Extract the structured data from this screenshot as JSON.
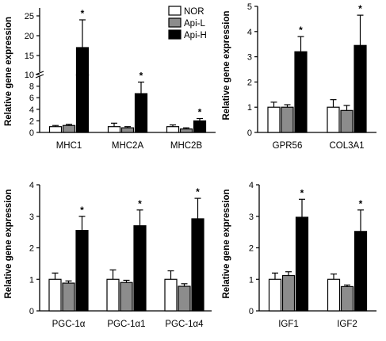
{
  "colors": {
    "NOR": "#ffffff",
    "Api-L": "#8c8c8c",
    "Api-H": "#000000",
    "stroke": "#000000"
  },
  "legend": {
    "position": "top-right of first panel",
    "entries": [
      "NOR",
      "Api-L",
      "Api-H"
    ]
  },
  "chart_data": [
    {
      "type": "bar",
      "axis_break": true,
      "ylabel": "Relative gene expression",
      "categories": [
        "MHC1",
        "MHC2A",
        "MHC2B"
      ],
      "yticks": [
        0,
        2,
        4,
        6,
        8,
        10,
        15,
        20,
        25
      ],
      "ylim_lower": [
        0,
        10
      ],
      "ylim_upper": [
        10,
        27
      ],
      "series": [
        {
          "name": "NOR",
          "values": [
            1.0,
            1.0,
            1.0
          ],
          "errors": [
            0.2,
            0.6,
            0.3
          ]
        },
        {
          "name": "Api-L",
          "values": [
            1.2,
            0.8,
            0.6
          ],
          "errors": [
            0.2,
            0.2,
            0.2
          ]
        },
        {
          "name": "Api-H",
          "values": [
            17.0,
            6.7,
            2.0
          ],
          "errors": [
            7.0,
            2.0,
            0.4
          ]
        }
      ],
      "significance": [
        "*",
        "*",
        "*"
      ]
    },
    {
      "type": "bar",
      "ylabel": "Relative gene expression",
      "categories": [
        "GPR56",
        "COL3A1"
      ],
      "ylim": [
        0,
        5
      ],
      "yticks": [
        0,
        1,
        2,
        3,
        4,
        5
      ],
      "series": [
        {
          "name": "NOR",
          "values": [
            1.0,
            1.0
          ],
          "errors": [
            0.2,
            0.3
          ]
        },
        {
          "name": "Api-L",
          "values": [
            1.0,
            0.87
          ],
          "errors": [
            0.1,
            0.2
          ]
        },
        {
          "name": "Api-H",
          "values": [
            3.2,
            3.45
          ],
          "errors": [
            0.6,
            1.2
          ]
        }
      ],
      "significance": [
        "*",
        "*"
      ]
    },
    {
      "type": "bar",
      "ylabel": "Relative gene expression",
      "categories": [
        "PGC-1α",
        "PGC-1α1",
        "PGC-1α4"
      ],
      "ylim": [
        0,
        4
      ],
      "yticks": [
        0,
        1,
        2,
        3,
        4
      ],
      "series": [
        {
          "name": "NOR",
          "values": [
            1.0,
            1.0,
            1.0
          ],
          "errors": [
            0.2,
            0.3,
            0.27
          ]
        },
        {
          "name": "Api-L",
          "values": [
            0.88,
            0.9,
            0.78
          ],
          "errors": [
            0.07,
            0.07,
            0.08
          ]
        },
        {
          "name": "Api-H",
          "values": [
            2.55,
            2.7,
            2.92
          ],
          "errors": [
            0.45,
            0.5,
            0.65
          ]
        }
      ],
      "significance": [
        "*",
        "*",
        "*"
      ]
    },
    {
      "type": "bar",
      "ylabel": "Relative gene expression",
      "categories": [
        "IGF1",
        "IGF2"
      ],
      "ylim": [
        0,
        4
      ],
      "yticks": [
        0,
        1,
        2,
        3,
        4
      ],
      "series": [
        {
          "name": "NOR",
          "values": [
            1.0,
            1.0
          ],
          "errors": [
            0.2,
            0.17
          ]
        },
        {
          "name": "Api-L",
          "values": [
            1.12,
            0.77
          ],
          "errors": [
            0.12,
            0.05
          ]
        },
        {
          "name": "Api-H",
          "values": [
            2.97,
            2.52
          ],
          "errors": [
            0.57,
            0.68
          ]
        }
      ],
      "significance": [
        "*",
        "*"
      ]
    }
  ]
}
